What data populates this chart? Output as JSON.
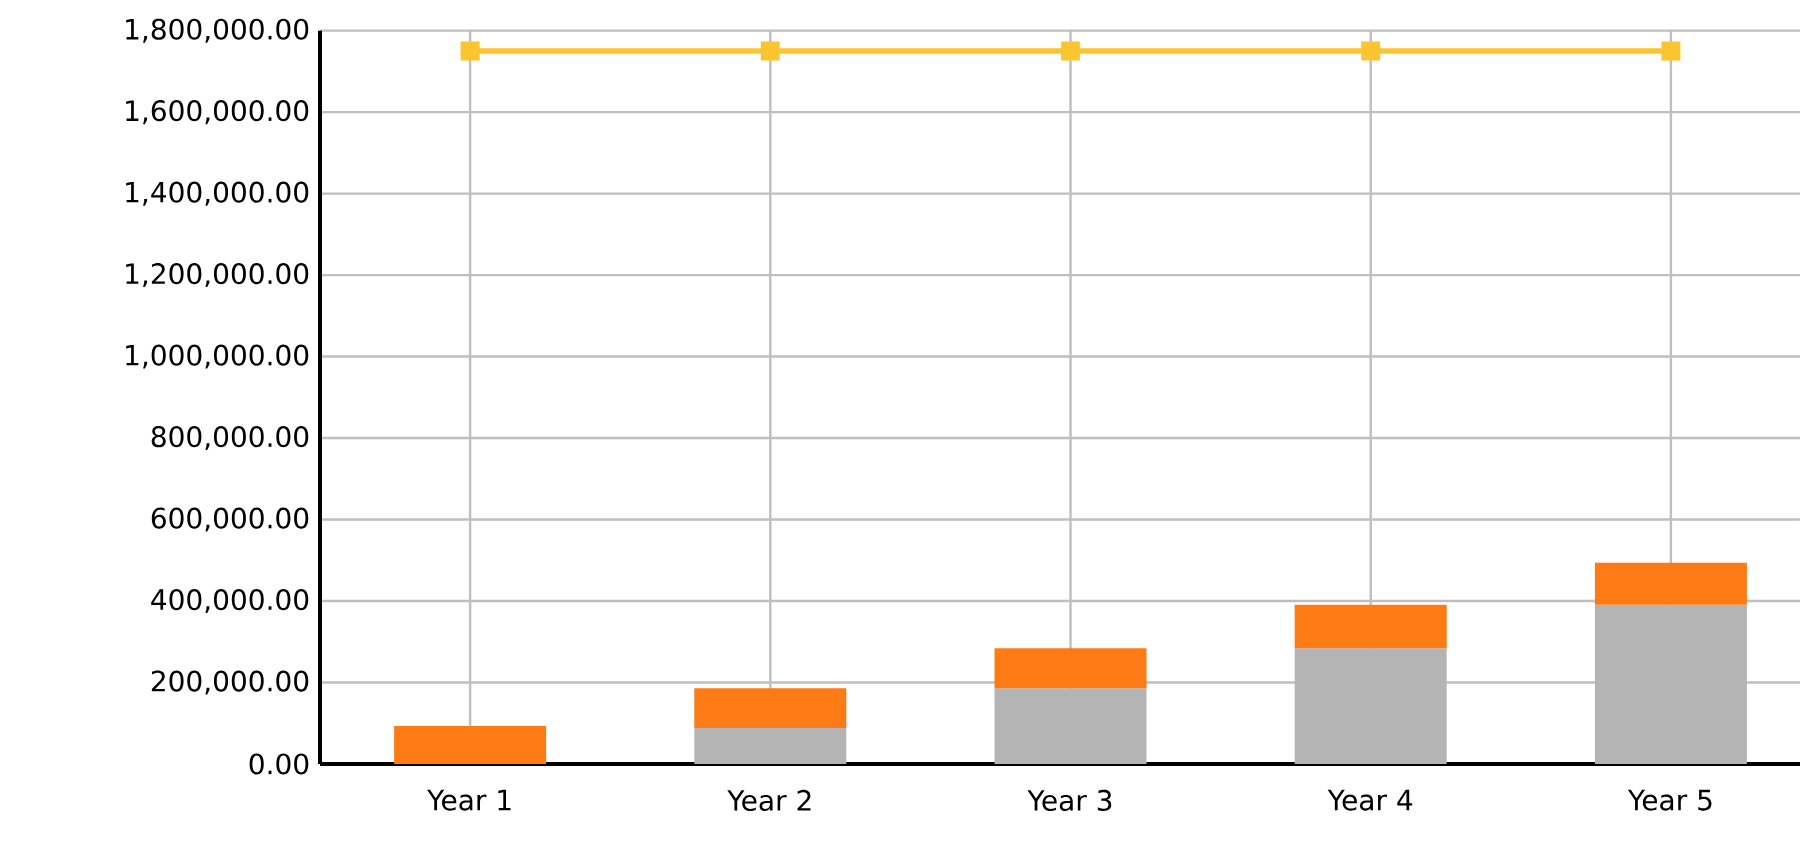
{
  "chart_data": {
    "type": "bar",
    "stacked": true,
    "categories": [
      "Year 1",
      "Year 2",
      "Year 3",
      "Year 4",
      "Year 5"
    ],
    "series": [
      {
        "type": "bar",
        "color": "#b4b4b4",
        "values": [
          0,
          88000,
          186000,
          284000,
          391000
        ]
      },
      {
        "type": "bar",
        "color": "#fd7b14",
        "values": [
          93000,
          98000,
          98000,
          107000,
          103000
        ]
      },
      {
        "type": "line",
        "color": "#fbc531",
        "marker": "square",
        "values": [
          1750000,
          1750000,
          1750000,
          1750000,
          1750000
        ]
      }
    ],
    "ylim": [
      0,
      1800000
    ],
    "yticks": [
      {
        "value": 0,
        "label": "0.00"
      },
      {
        "value": 200000,
        "label": "200,000.00"
      },
      {
        "value": 400000,
        "label": "400,000.00"
      },
      {
        "value": 600000,
        "label": "600,000.00"
      },
      {
        "value": 800000,
        "label": "800,000.00"
      },
      {
        "value": 1000000,
        "label": "1,000,000.00"
      },
      {
        "value": 1200000,
        "label": "1,200,000.00"
      },
      {
        "value": 1400000,
        "label": "1,400,000.00"
      },
      {
        "value": 1600000,
        "label": "1,600,000.00"
      },
      {
        "value": 1800000,
        "label": "1,800,000.00"
      }
    ],
    "grid": true
  }
}
